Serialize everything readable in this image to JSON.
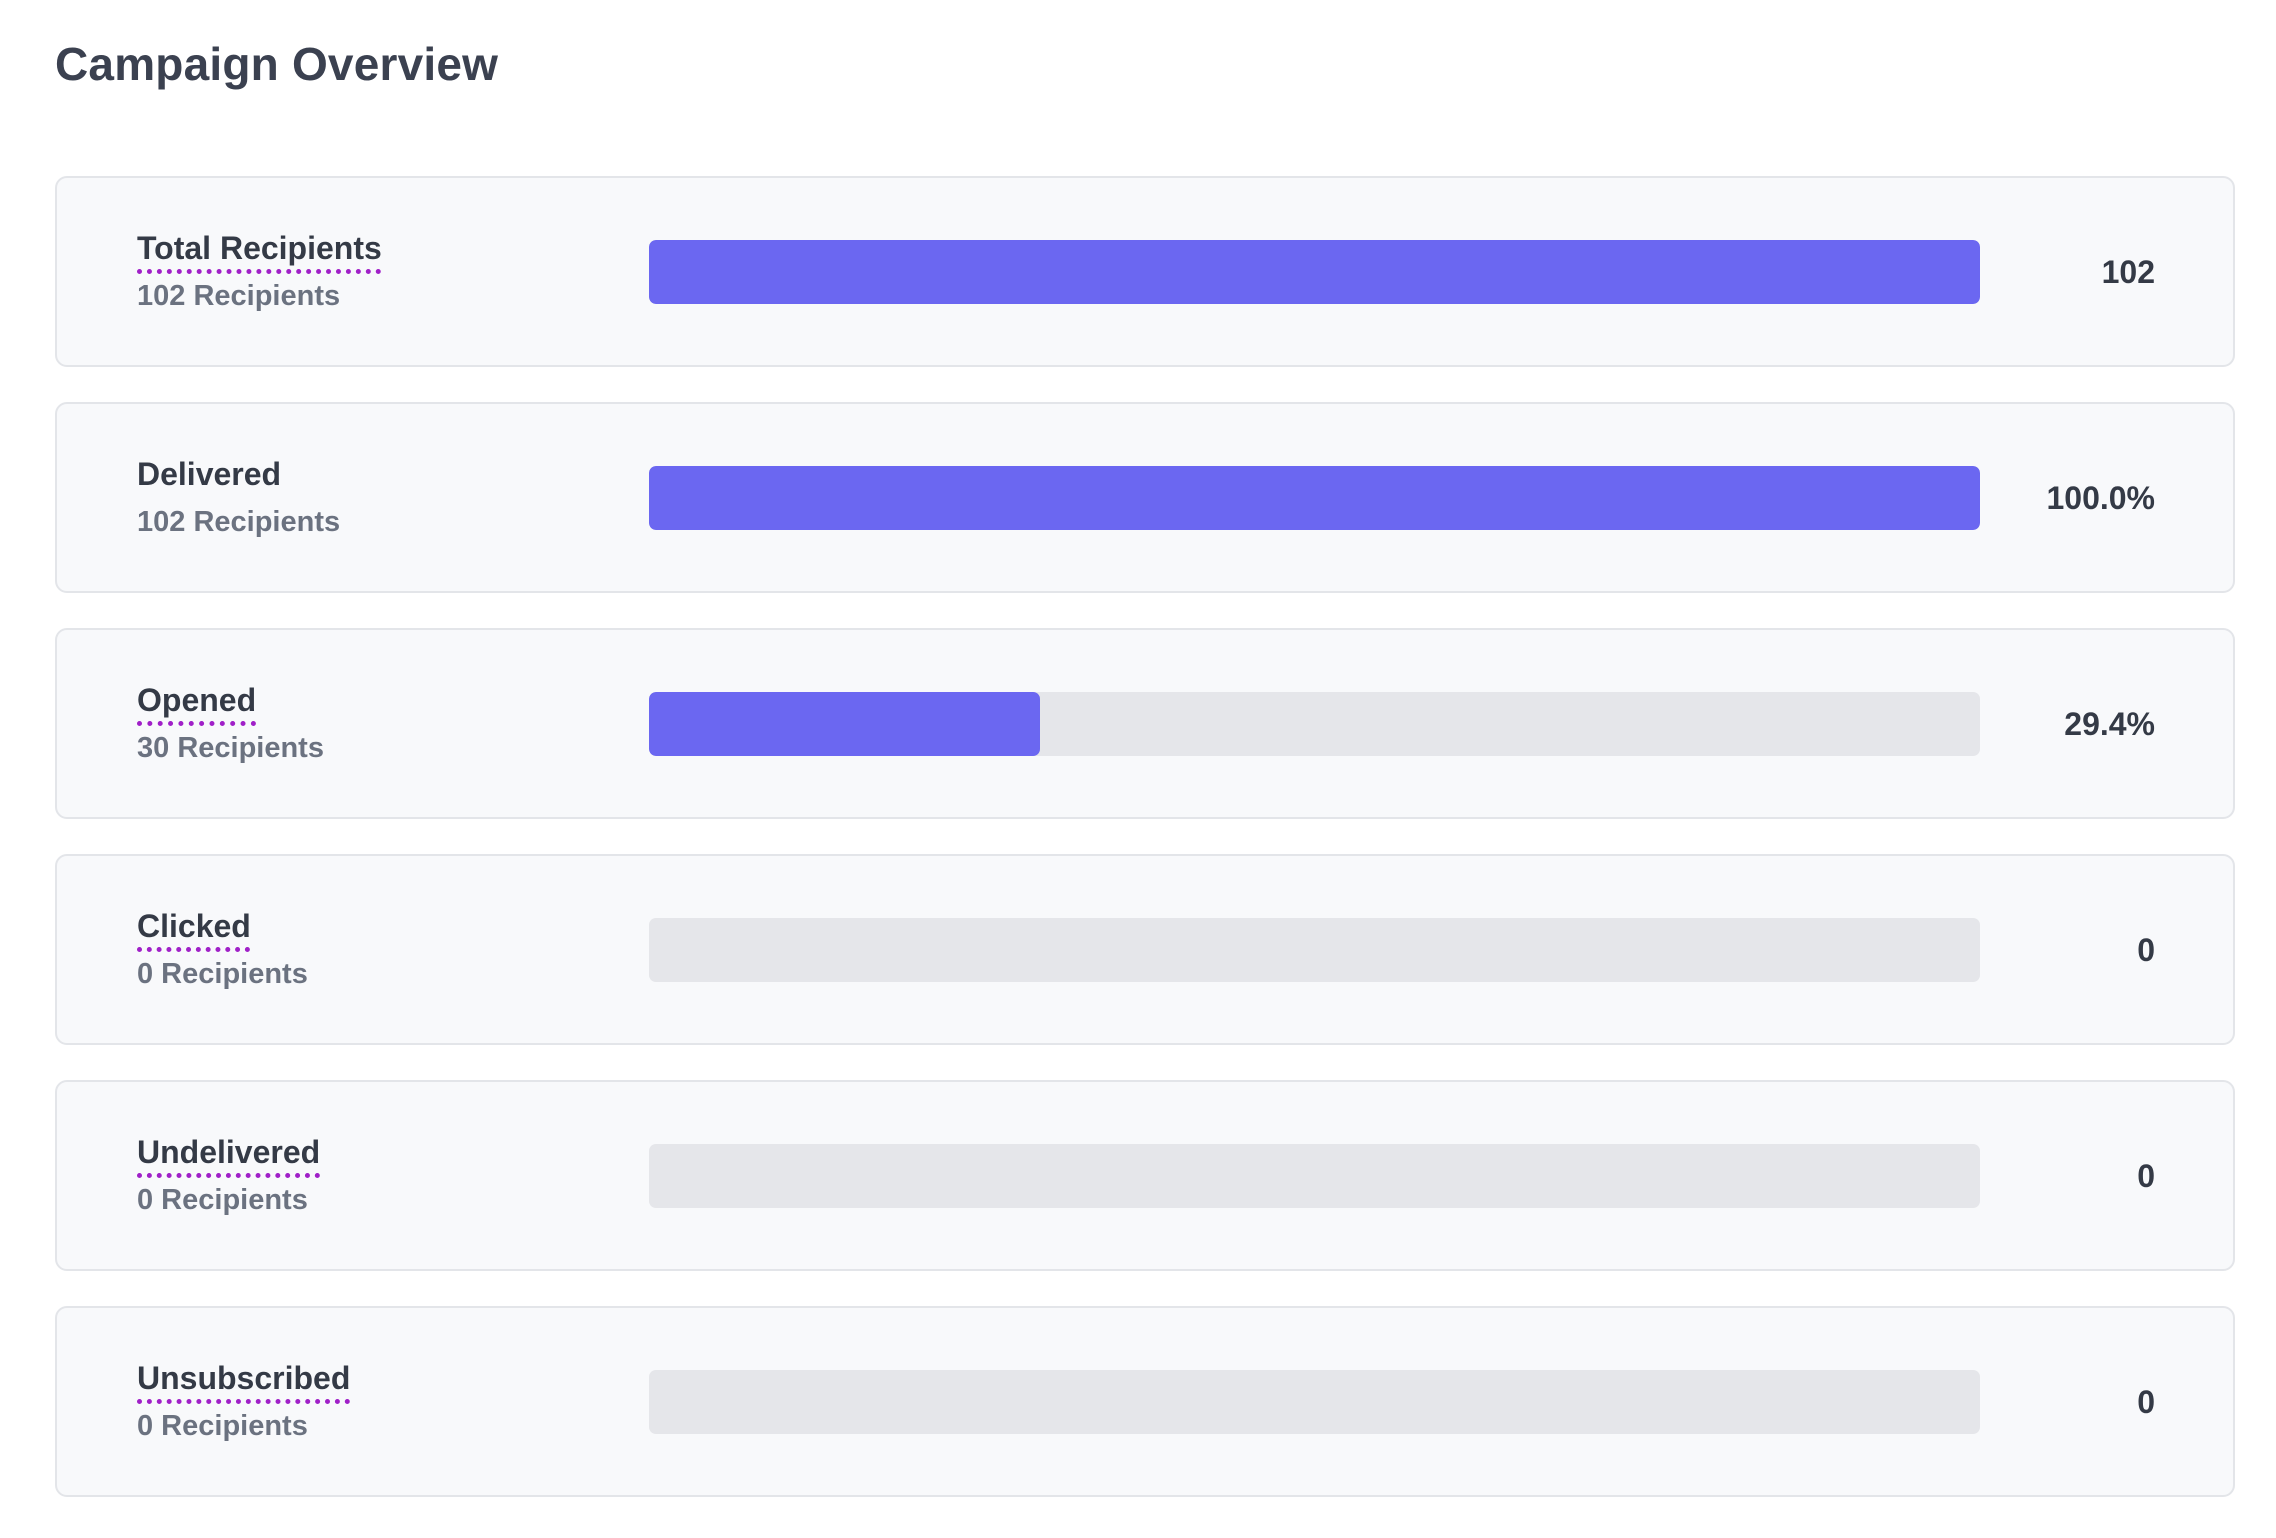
{
  "page": {
    "title": "Campaign Overview"
  },
  "colors": {
    "bar_fill": "#6b67f1",
    "bar_track": "#e5e6ea",
    "tooltip_underline": "#a020c8"
  },
  "metrics": [
    {
      "label": "Total Recipients",
      "subtitle": "102 Recipients",
      "value": "102",
      "fraction": 1.0,
      "has_tooltip": true
    },
    {
      "label": "Delivered",
      "subtitle": "102 Recipients",
      "value": "100.0%",
      "fraction": 1.0,
      "has_tooltip": false
    },
    {
      "label": "Opened",
      "subtitle": "30 Recipients",
      "value": "29.4%",
      "fraction": 0.294,
      "has_tooltip": true
    },
    {
      "label": "Clicked",
      "subtitle": "0 Recipients",
      "value": "0",
      "fraction": 0.0,
      "has_tooltip": true
    },
    {
      "label": "Undelivered",
      "subtitle": "0 Recipients",
      "value": "0",
      "fraction": 0.0,
      "has_tooltip": true
    },
    {
      "label": "Unsubscribed",
      "subtitle": "0 Recipients",
      "value": "0",
      "fraction": 0.0,
      "has_tooltip": true
    }
  ]
}
